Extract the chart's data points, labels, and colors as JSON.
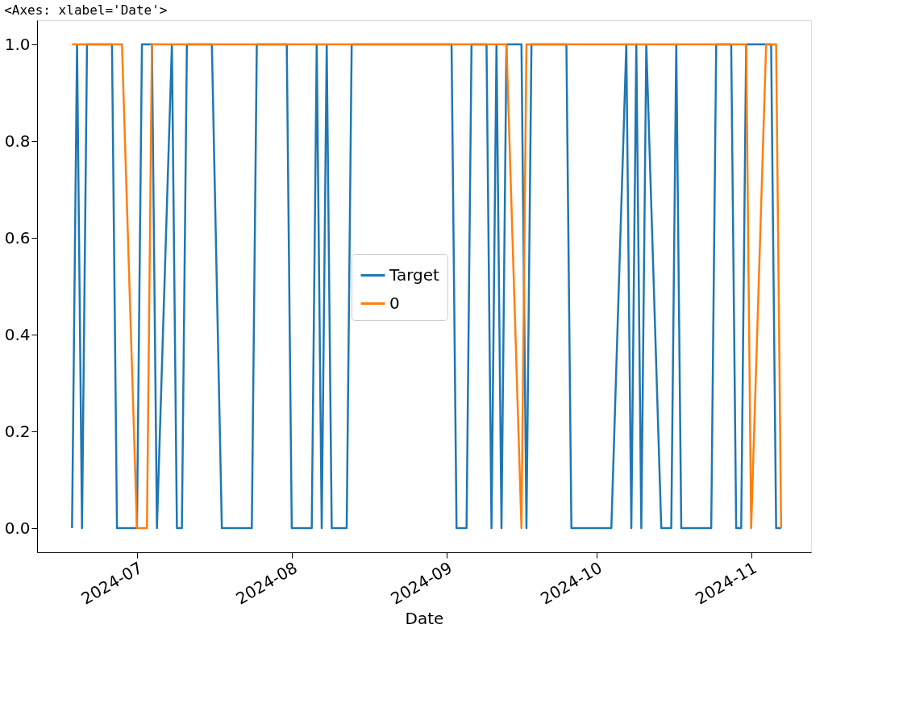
{
  "chart_data": {
    "type": "line",
    "title": "<Axes: xlabel='Date'>",
    "xlabel": "Date",
    "xlim": [
      "2024-06-11",
      "2024-11-13"
    ],
    "xticks": [
      "2024-07",
      "2024-08",
      "2024-09",
      "2024-10",
      "2024-11"
    ],
    "ylim": [
      -0.05,
      1.05
    ],
    "yticks": [
      {
        "value": 0,
        "label": "0.0"
      },
      {
        "value": 0.2,
        "label": "0.2"
      },
      {
        "value": 0.4,
        "label": "0.4"
      },
      {
        "value": 0.6,
        "label": "0.6"
      },
      {
        "value": 0.8,
        "label": "0.8"
      },
      {
        "value": 1,
        "label": "1.0"
      }
    ],
    "grid": false,
    "legend": "center",
    "marker": "none",
    "line_style": "solid",
    "series": [
      {
        "name": "Target",
        "color": "#1f77b4",
        "x": [
          "2024-06-18",
          "2024-06-19",
          "2024-06-20",
          "2024-06-21",
          "2024-06-26",
          "2024-06-27",
          "2024-07-01",
          "2024-07-02",
          "2024-07-04",
          "2024-07-05",
          "2024-07-08",
          "2024-07-09",
          "2024-07-10",
          "2024-07-11",
          "2024-07-16",
          "2024-07-18",
          "2024-07-24",
          "2024-07-25",
          "2024-07-31",
          "2024-08-01",
          "2024-08-05",
          "2024-08-06",
          "2024-08-07",
          "2024-08-08",
          "2024-08-09",
          "2024-08-12",
          "2024-08-13",
          "2024-09-02",
          "2024-09-03",
          "2024-09-05",
          "2024-09-06",
          "2024-09-09",
          "2024-09-10",
          "2024-09-11",
          "2024-09-12",
          "2024-09-13",
          "2024-09-16",
          "2024-09-17",
          "2024-09-18",
          "2024-09-25",
          "2024-09-26",
          "2024-10-04",
          "2024-10-07",
          "2024-10-08",
          "2024-10-09",
          "2024-10-10",
          "2024-10-11",
          "2024-10-14",
          "2024-10-16",
          "2024-10-17",
          "2024-10-18",
          "2024-10-24",
          "2024-10-25",
          "2024-10-28",
          "2024-10-29",
          "2024-10-30",
          "2024-10-31",
          "2024-11-05",
          "2024-11-06",
          "2024-11-07"
        ],
        "values": [
          0,
          1,
          0,
          1,
          1,
          0,
          0,
          1,
          1,
          0,
          1,
          0,
          0,
          1,
          1,
          0,
          0,
          1,
          1,
          0,
          0,
          1,
          0,
          1,
          0,
          0,
          1,
          1,
          0,
          0,
          1,
          1,
          0,
          1,
          0,
          1,
          1,
          0,
          1,
          1,
          0,
          0,
          1,
          0,
          1,
          0,
          1,
          0,
          0,
          1,
          0,
          0,
          1,
          1,
          0,
          0,
          1,
          1,
          0,
          0
        ]
      },
      {
        "name": "0",
        "color": "#ff7f0e",
        "x": [
          "2024-06-18",
          "2024-06-28",
          "2024-07-01",
          "2024-07-03",
          "2024-07-04",
          "2024-09-13",
          "2024-09-16",
          "2024-09-17",
          "2024-10-31",
          "2024-11-01",
          "2024-11-04",
          "2024-11-06",
          "2024-11-07"
        ],
        "values": [
          1,
          1,
          0,
          0,
          1,
          1,
          0,
          1,
          1,
          0,
          1,
          1,
          0
        ]
      }
    ]
  }
}
